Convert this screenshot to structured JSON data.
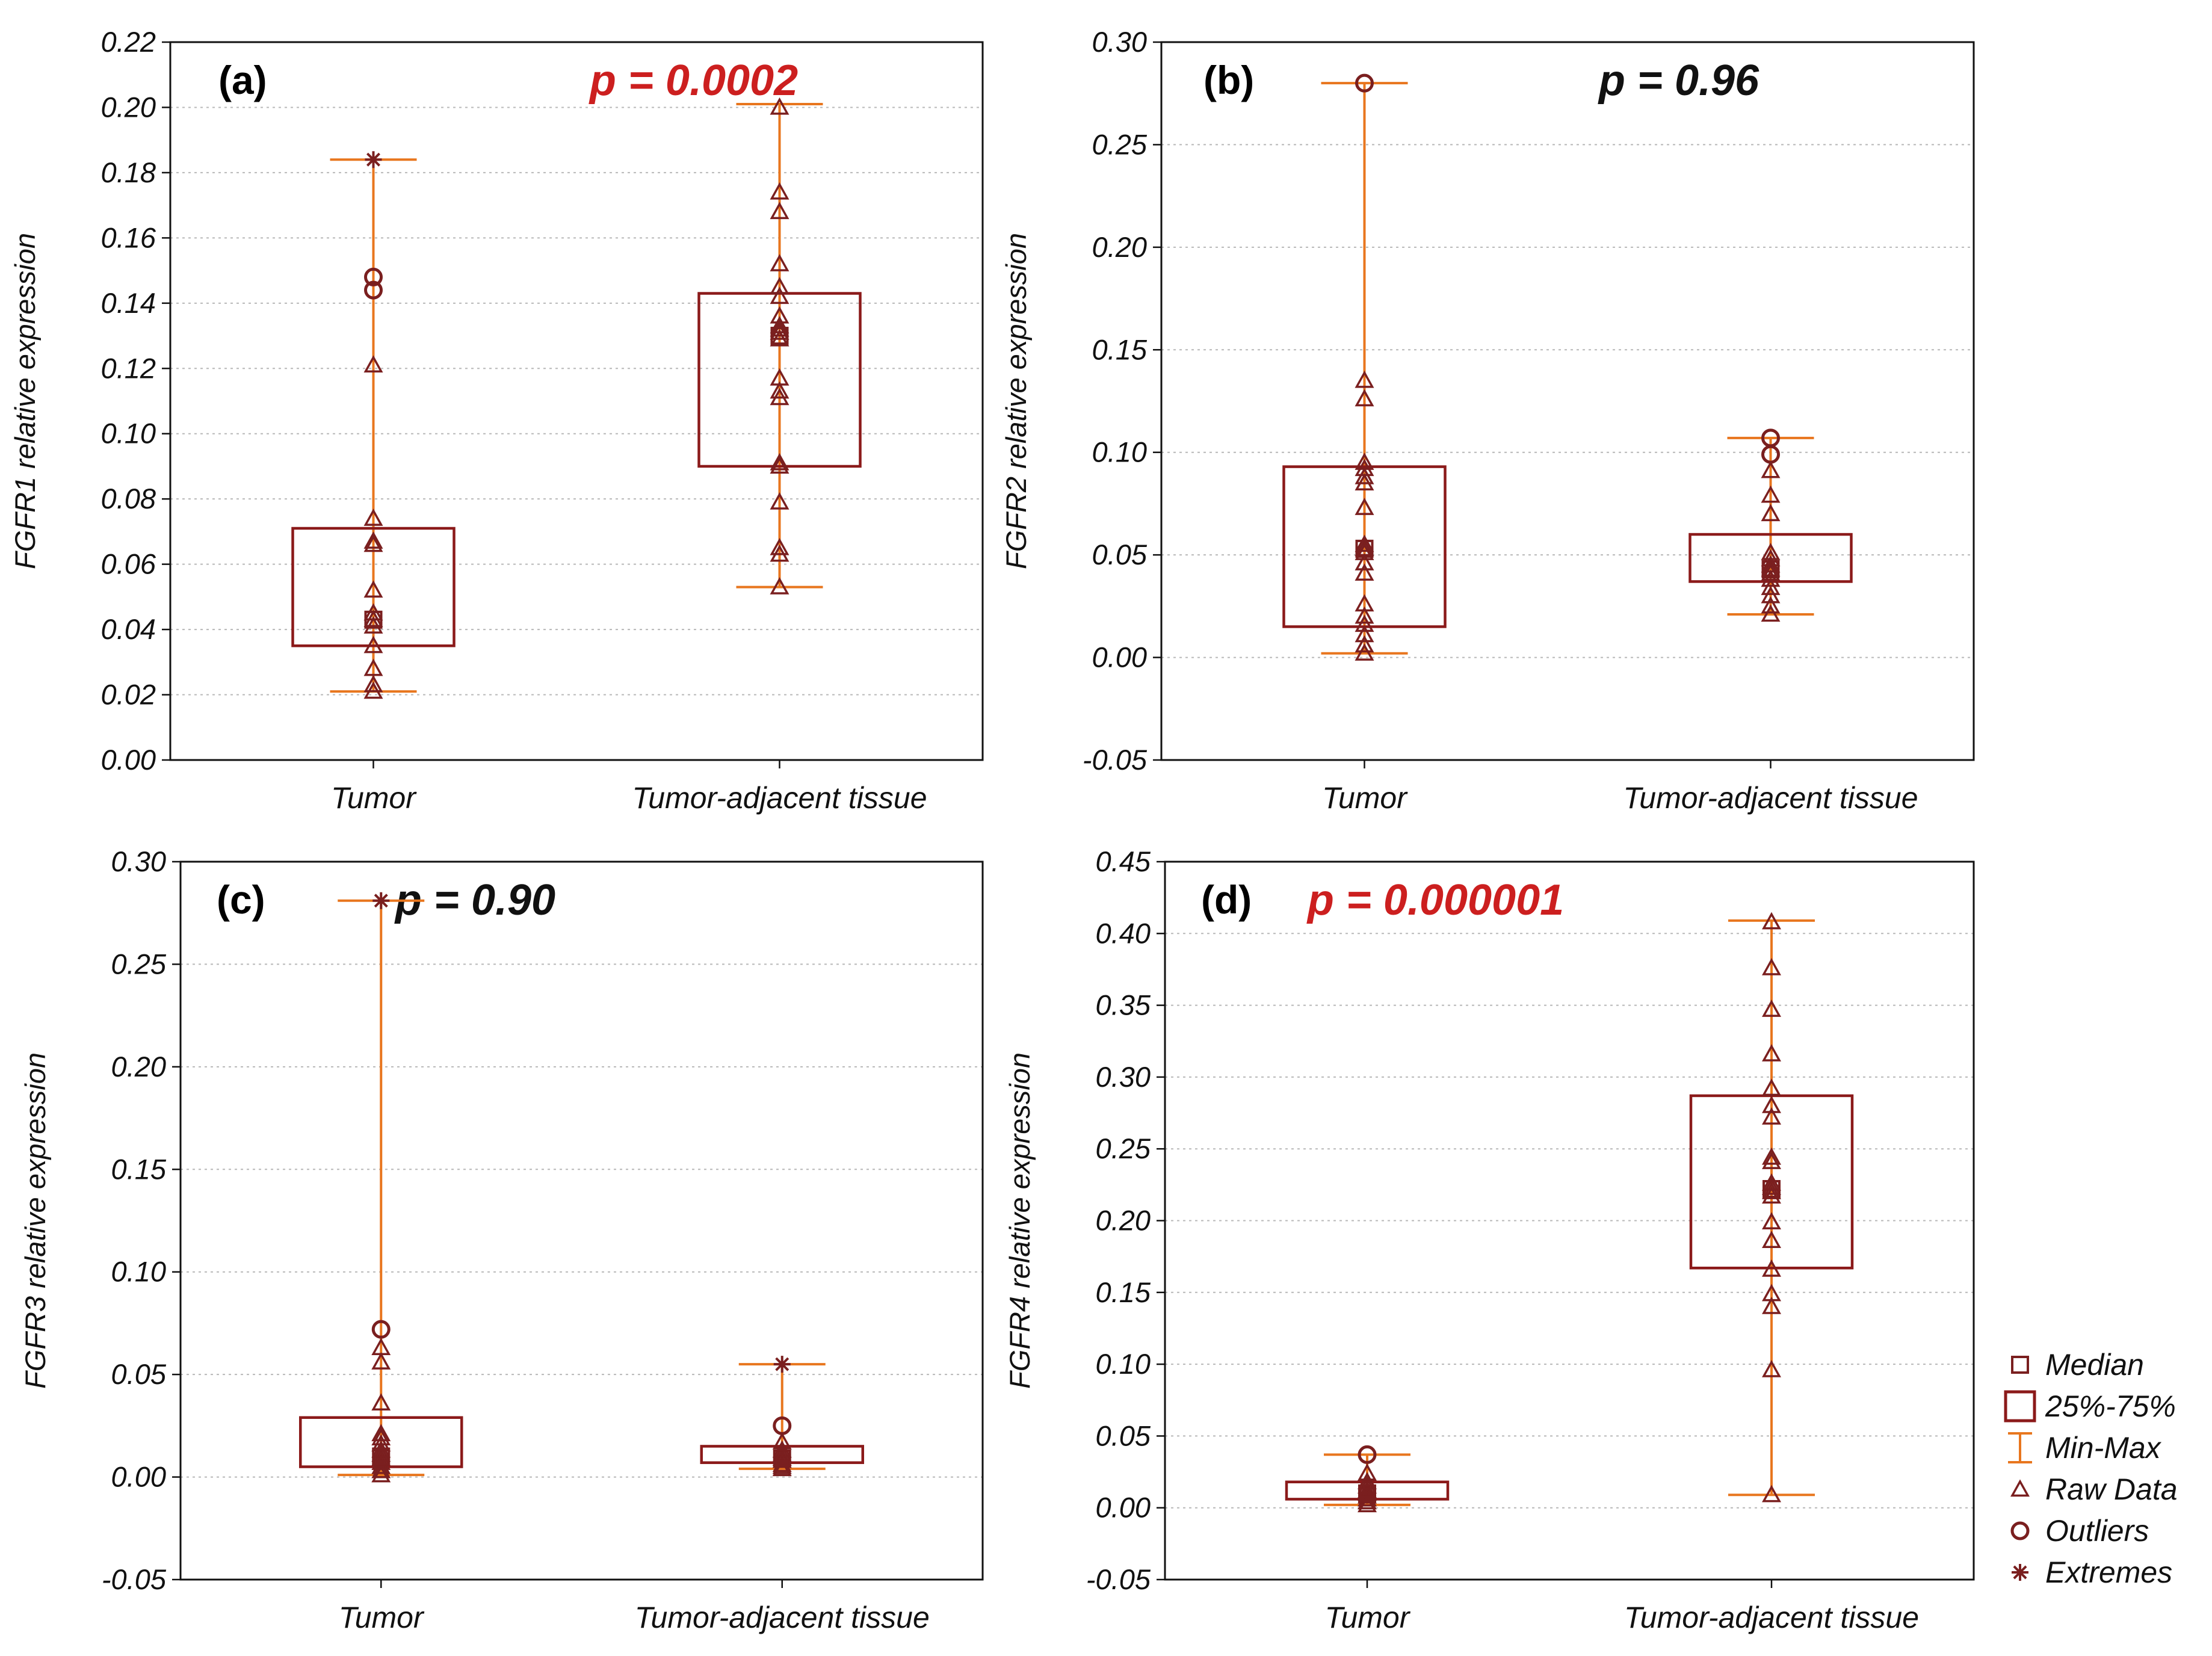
{
  "colors": {
    "box": "#8b1a1a",
    "whisker": "#e8761e",
    "marker": "#7a1f1f",
    "grid": "#b8b8b8",
    "p_significant": "#cc1f1f",
    "p_not_significant": "#111111"
  },
  "legend": {
    "items": [
      {
        "symbol": "square",
        "label": "Median"
      },
      {
        "symbol": "box",
        "label": "25%-75%"
      },
      {
        "symbol": "whisker",
        "label": "Min-Max"
      },
      {
        "symbol": "triangle",
        "label": "Raw Data"
      },
      {
        "symbol": "circle",
        "label": "Outliers"
      },
      {
        "symbol": "star",
        "label": "Extremes"
      }
    ]
  },
  "chart_data": [
    {
      "type": "box",
      "panel": "(a)",
      "p_value": "p = 0.0002",
      "significant": true,
      "ylabel": "FGFR1 relative expression",
      "ylim": [
        0.0,
        0.22
      ],
      "ytick_step": 0.02,
      "yticks": [
        "0.00",
        "0.02",
        "0.04",
        "0.06",
        "0.08",
        "0.10",
        "0.12",
        "0.14",
        "0.16",
        "0.18",
        "0.20",
        "0.22"
      ],
      "categories": [
        "Tumor",
        "Tumor-adjacent tissue"
      ],
      "groups": [
        {
          "name": "Tumor",
          "min": 0.021,
          "q1": 0.035,
          "median": 0.043,
          "q3": 0.071,
          "max": 0.184,
          "raw": [
            0.021,
            0.023,
            0.028,
            0.035,
            0.041,
            0.043,
            0.045,
            0.052,
            0.066,
            0.067,
            0.074,
            0.121
          ],
          "outliers": [
            0.144,
            0.148
          ],
          "extremes": [
            0.184
          ]
        },
        {
          "name": "Tumor-adjacent tissue",
          "min": 0.053,
          "q1": 0.09,
          "median": 0.13,
          "q3": 0.143,
          "max": 0.201,
          "raw": [
            0.053,
            0.063,
            0.065,
            0.079,
            0.09,
            0.091,
            0.111,
            0.113,
            0.117,
            0.129,
            0.131,
            0.132,
            0.133,
            0.136,
            0.142,
            0.145,
            0.152,
            0.168,
            0.174,
            0.2
          ],
          "outliers": [],
          "extremes": []
        }
      ]
    },
    {
      "type": "box",
      "panel": "(b)",
      "p_value": "p = 0.96",
      "significant": false,
      "ylabel": "FGFR2 relative expression",
      "ylim": [
        -0.05,
        0.3
      ],
      "ytick_step": 0.05,
      "yticks": [
        "-0.05",
        "0.00",
        "0.05",
        "0.10",
        "0.15",
        "0.20",
        "0.25",
        "0.30"
      ],
      "categories": [
        "Tumor",
        "Tumor-adjacent tissue"
      ],
      "groups": [
        {
          "name": "Tumor",
          "min": 0.002,
          "q1": 0.015,
          "median": 0.053,
          "q3": 0.093,
          "max": 0.28,
          "raw": [
            0.002,
            0.006,
            0.011,
            0.016,
            0.02,
            0.026,
            0.041,
            0.046,
            0.051,
            0.053,
            0.055,
            0.073,
            0.085,
            0.088,
            0.092,
            0.095,
            0.126,
            0.135
          ],
          "outliers": [
            0.28
          ],
          "extremes": []
        },
        {
          "name": "Tumor-adjacent tissue",
          "min": 0.021,
          "q1": 0.037,
          "median": 0.043,
          "q3": 0.06,
          "max": 0.107,
          "raw": [
            0.021,
            0.025,
            0.03,
            0.034,
            0.038,
            0.041,
            0.043,
            0.045,
            0.048,
            0.051,
            0.07,
            0.079,
            0.091
          ],
          "outliers": [
            0.099,
            0.107
          ],
          "extremes": []
        }
      ]
    },
    {
      "type": "box",
      "panel": "(c)",
      "p_value": "p = 0.90",
      "significant": false,
      "ylabel": "FGFR3 relative expression",
      "ylim": [
        -0.05,
        0.3
      ],
      "ytick_step": 0.05,
      "yticks": [
        "-0.05",
        "0.00",
        "0.05",
        "0.10",
        "0.15",
        "0.20",
        "0.25",
        "0.30"
      ],
      "categories": [
        "Tumor",
        "Tumor-adjacent tissue"
      ],
      "groups": [
        {
          "name": "Tumor",
          "min": 0.001,
          "q1": 0.005,
          "median": 0.01,
          "q3": 0.029,
          "max": 0.281,
          "raw": [
            0.001,
            0.003,
            0.005,
            0.007,
            0.009,
            0.011,
            0.013,
            0.016,
            0.019,
            0.021,
            0.036,
            0.056,
            0.063
          ],
          "outliers": [
            0.072
          ],
          "extremes": [
            0.281
          ]
        },
        {
          "name": "Tumor-adjacent tissue",
          "min": 0.004,
          "q1": 0.007,
          "median": 0.009,
          "q3": 0.015,
          "max": 0.055,
          "raw": [
            0.004,
            0.005,
            0.006,
            0.008,
            0.009,
            0.011,
            0.013,
            0.017
          ],
          "outliers": [
            0.025
          ],
          "extremes": [
            0.055
          ]
        }
      ]
    },
    {
      "type": "box",
      "panel": "(d)",
      "p_value": "p = 0.000001",
      "significant": true,
      "ylabel": "FGFR4 relative expression",
      "ylim": [
        -0.05,
        0.45
      ],
      "ytick_step": 0.05,
      "yticks": [
        "-0.05",
        "0.00",
        "0.05",
        "0.10",
        "0.15",
        "0.20",
        "0.25",
        "0.30",
        "0.35",
        "0.40",
        "0.45"
      ],
      "categories": [
        "Tumor",
        "Tumor-adjacent tissue"
      ],
      "groups": [
        {
          "name": "Tumor",
          "min": 0.002,
          "q1": 0.006,
          "median": 0.01,
          "q3": 0.018,
          "max": 0.037,
          "raw": [
            0.002,
            0.004,
            0.006,
            0.008,
            0.01,
            0.012,
            0.015,
            0.018,
            0.024
          ],
          "outliers": [
            0.037
          ],
          "extremes": []
        },
        {
          "name": "Tumor-adjacent tissue",
          "min": 0.009,
          "q1": 0.167,
          "median": 0.222,
          "q3": 0.287,
          "max": 0.409,
          "raw": [
            0.009,
            0.096,
            0.14,
            0.149,
            0.166,
            0.186,
            0.199,
            0.217,
            0.22,
            0.223,
            0.226,
            0.241,
            0.244,
            0.272,
            0.28,
            0.292,
            0.316,
            0.347,
            0.376,
            0.408
          ],
          "outliers": [],
          "extremes": []
        }
      ]
    }
  ]
}
